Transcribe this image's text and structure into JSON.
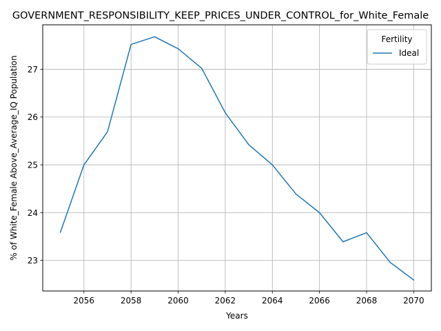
{
  "chart_data": {
    "type": "line",
    "title": "GOVERNMENT_RESPONSIBILITY_KEEP_PRICES_UNDER_CONTROL_for_White_Female",
    "xlabel": "Years",
    "ylabel": "% of White_Female Above_Average_IQ Population",
    "x": [
      2055,
      2056,
      2057,
      2058,
      2059,
      2060,
      2061,
      2062,
      2063,
      2064,
      2065,
      2066,
      2067,
      2068,
      2069,
      2070
    ],
    "series": [
      {
        "name": "Ideal",
        "color": "#1f77b4",
        "values": [
          23.59,
          25.0,
          25.69,
          27.52,
          27.68,
          27.43,
          27.02,
          26.09,
          25.42,
          25.0,
          24.39,
          24.0,
          23.39,
          23.58,
          22.96,
          22.59
        ]
      }
    ],
    "xticks": [
      2056,
      2058,
      2060,
      2062,
      2064,
      2066,
      2068,
      2070
    ],
    "yticks": [
      23,
      24,
      25,
      26,
      27
    ],
    "xlim": [
      2054.25,
      2070.75
    ],
    "ylim": [
      22.36,
      27.93
    ],
    "grid": true,
    "legend": {
      "title": "Fertility",
      "position": "top-right"
    }
  }
}
